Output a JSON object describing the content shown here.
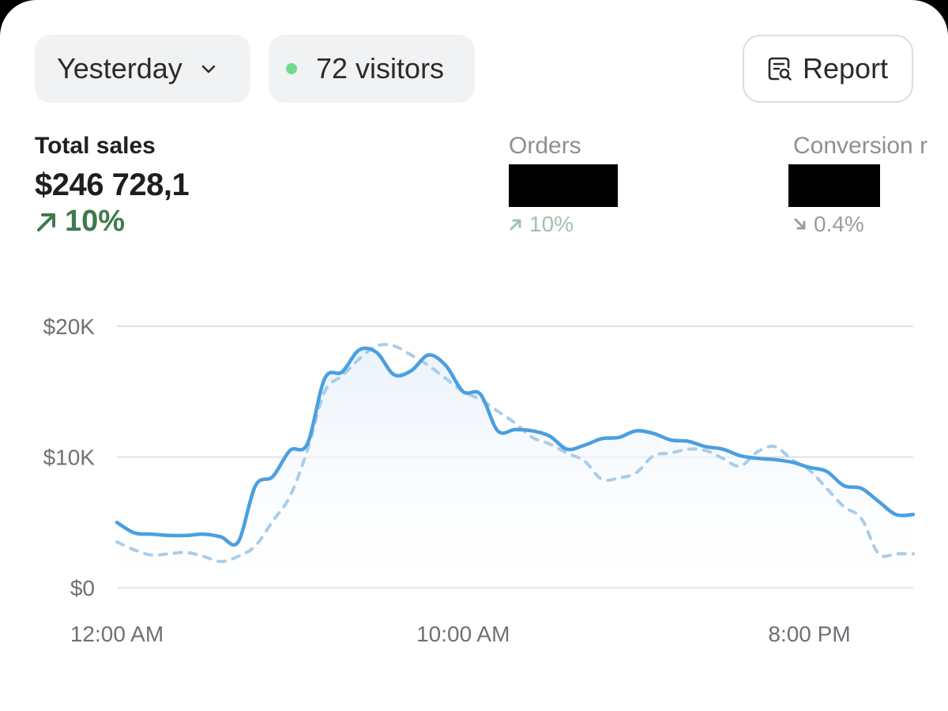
{
  "filters": {
    "date_range": "Yesterday",
    "visitors": "72 visitors"
  },
  "toolbar": {
    "report_label": "Report"
  },
  "metrics": {
    "total_sales": {
      "label": "Total sales",
      "value": "$246 728,1",
      "delta": "10%"
    },
    "orders": {
      "label": "Orders",
      "delta": "10%"
    },
    "conversion": {
      "label": "Conversion r",
      "delta": "0.4%"
    }
  },
  "colors": {
    "accent_line": "#4a9fe0",
    "compare_line": "#a9cde9",
    "positive": "#3f7a4d",
    "positive_muted": "#9fc3aa",
    "neutral_muted": "#9a9ca0",
    "live_dot": "#6fdc8c"
  },
  "icons": {
    "date_dropdown": "chevron-down-icon",
    "report": "report-search-icon",
    "trend_up": "arrow-up-right-icon",
    "trend_down": "arrow-down-right-icon"
  },
  "chart_data": {
    "type": "line",
    "x_tick_labels": [
      "12:00 AM",
      "10:00 AM",
      "8:00 PM"
    ],
    "y_tick_labels": [
      "$20K",
      "$10K",
      "$0"
    ],
    "ylim": [
      0,
      20000
    ],
    "grid": true,
    "x": [
      0,
      0.5,
      1,
      1.5,
      2,
      2.5,
      3,
      3.5,
      4,
      4.5,
      5,
      5.5,
      6,
      6.5,
      7,
      7.5,
      8,
      8.5,
      9,
      9.5,
      10,
      10.5,
      11,
      11.5,
      12,
      12.5,
      13,
      13.5,
      14,
      14.5,
      15,
      15.5,
      16,
      16.5,
      17,
      17.5,
      18,
      18.5,
      19,
      19.5,
      20,
      20.5,
      21,
      21.5,
      22,
      22.5,
      23
    ],
    "series": [
      {
        "values": [
          5000,
          4200,
          4100,
          4000,
          4000,
          4100,
          3900,
          3500,
          7800,
          8500,
          10500,
          11000,
          16000,
          16500,
          18200,
          18000,
          16300,
          16600,
          17800,
          17000,
          15000,
          14800,
          12000,
          12100,
          12000,
          11600,
          10600,
          10900,
          11400,
          11500,
          12000,
          11800,
          11300,
          11200,
          10800,
          10600,
          10100,
          9900,
          9800,
          9600,
          9200,
          8900,
          7800,
          7600,
          6600,
          5600,
          5600
        ]
      },
      {
        "values": [
          3500,
          2900,
          2500,
          2600,
          2700,
          2400,
          2000,
          2400,
          3200,
          5100,
          7000,
          10500,
          15000,
          16200,
          17500,
          18500,
          18500,
          17800,
          17000,
          16000,
          15000,
          14400,
          13500,
          12600,
          11500,
          11000,
          10300,
          9700,
          8300,
          8400,
          8800,
          10100,
          10300,
          10600,
          10500,
          9900,
          9300,
          10400,
          10800,
          9800,
          9000,
          7600,
          6200,
          5300,
          2600,
          2600,
          2600
        ]
      }
    ]
  }
}
